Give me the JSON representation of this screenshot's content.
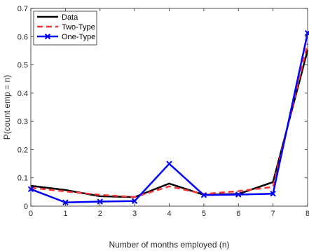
{
  "chart_data": {
    "type": "line",
    "xlabel": "Number of months employed (n)",
    "ylabel": "P(count emp = n)",
    "xlim": [
      0,
      8
    ],
    "ylim": [
      0,
      0.7
    ],
    "xticks": [
      "0",
      "1",
      "2",
      "3",
      "4",
      "5",
      "6",
      "7",
      "8"
    ],
    "yticks": [
      "0",
      "0.1",
      "0.2",
      "0.3",
      "0.4",
      "0.5",
      "0.6",
      "0.7"
    ],
    "grid": false,
    "legend_position": "top-left",
    "x": [
      0,
      1,
      2,
      3,
      4,
      5,
      6,
      7,
      8
    ],
    "series": [
      {
        "name": "Data",
        "color": "#000000",
        "style": "solid",
        "marker": "none",
        "values": [
          0.072,
          0.057,
          0.035,
          0.032,
          0.08,
          0.04,
          0.043,
          0.085,
          0.552
        ]
      },
      {
        "name": "Two-Type",
        "color": "#ff3333",
        "style": "dashed",
        "marker": "none",
        "values": [
          0.065,
          0.052,
          0.04,
          0.032,
          0.07,
          0.043,
          0.053,
          0.068,
          0.575
        ]
      },
      {
        "name": "One-Type",
        "color": "#0000ff",
        "style": "solid",
        "marker": "x",
        "values": [
          0.06,
          0.013,
          0.016,
          0.018,
          0.15,
          0.039,
          0.041,
          0.044,
          0.613
        ]
      }
    ]
  }
}
